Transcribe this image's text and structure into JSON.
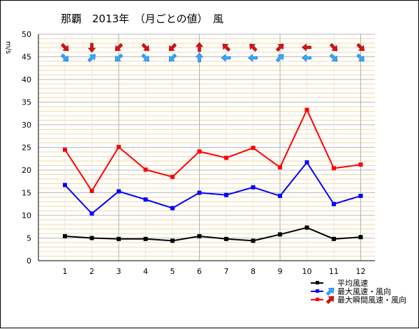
{
  "chart_data": {
    "type": "line",
    "title": "那覇　2013年　（月ごとの値）　風",
    "ylabel": "m/s",
    "ylim": [
      0,
      50
    ],
    "y_major_ticks": [
      0,
      5,
      10,
      15,
      20,
      25,
      30,
      35,
      40,
      45,
      50
    ],
    "y_minor_step": 1,
    "categories": [
      "1",
      "2",
      "3",
      "4",
      "5",
      "6",
      "7",
      "8",
      "9",
      "10",
      "11",
      "12"
    ],
    "series": [
      {
        "name": "平均風速",
        "color": "#000000",
        "values": [
          5.4,
          5.0,
          4.8,
          4.8,
          4.4,
          5.4,
          4.8,
          4.4,
          5.8,
          7.3,
          4.8,
          5.2
        ]
      },
      {
        "name": "最大風速・風向",
        "color": "#0000ff",
        "values": [
          16.7,
          10.4,
          15.3,
          13.5,
          11.6,
          15.0,
          14.5,
          16.2,
          14.3,
          21.7,
          12.5,
          14.3
        ]
      },
      {
        "name": "最大瞬間風速・風向",
        "color": "#ff0000",
        "values": [
          24.5,
          15.4,
          25.1,
          20.1,
          18.5,
          24.1,
          22.7,
          24.9,
          20.6,
          33.3,
          20.4,
          21.2
        ]
      }
    ],
    "wind_direction_icons": {
      "max_wind": {
        "color": "#33aaff",
        "directions": [
          "NW",
          "SW",
          "NE",
          "NW",
          "NE",
          "S",
          "E",
          "E",
          "SW",
          "E",
          "NW",
          "NW"
        ]
      },
      "max_gust": {
        "color": "#dd1111",
        "directions": [
          "NW",
          "N",
          "NE",
          "NW",
          "NE",
          "S",
          "SE",
          "SE",
          "SW",
          "E",
          "NW",
          "NW"
        ]
      }
    },
    "legend_position": "bottom-right",
    "grid": true
  }
}
